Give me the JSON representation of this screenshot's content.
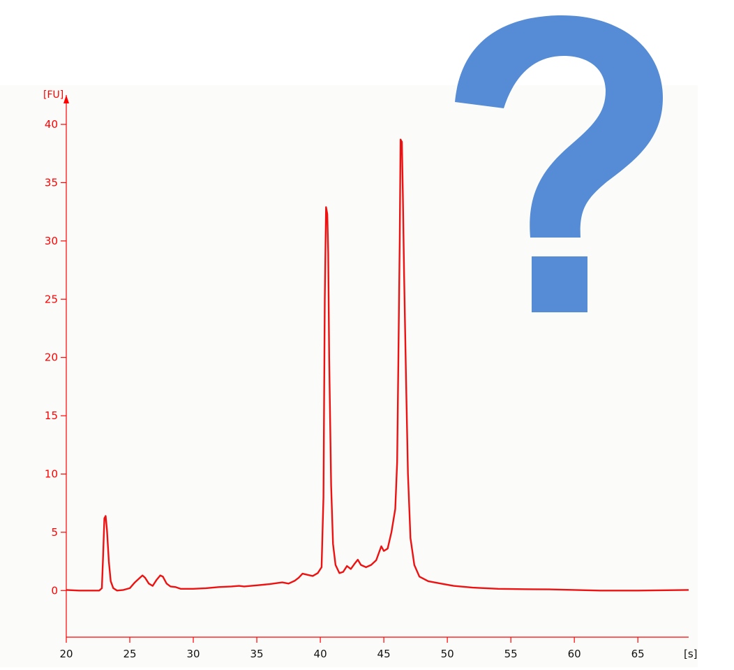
{
  "chart_data": {
    "type": "line",
    "title": "",
    "xlabel": "",
    "ylabel": "",
    "x_unit": "[s]",
    "y_unit": "[FU]",
    "xlim": [
      20,
      69
    ],
    "ylim": [
      -4,
      43
    ],
    "x_ticks": [
      20,
      25,
      30,
      35,
      40,
      45,
      50,
      55,
      60,
      65
    ],
    "y_ticks": [
      0,
      5,
      10,
      15,
      20,
      25,
      30,
      35,
      40
    ],
    "grid": false,
    "legend": "none",
    "series": [
      {
        "color": "#ee1111",
        "points": [
          [
            20.0,
            0.05
          ],
          [
            21.0,
            0.0
          ],
          [
            22.0,
            0.0
          ],
          [
            22.6,
            0.0
          ],
          [
            22.8,
            0.2
          ],
          [
            22.9,
            3.0
          ],
          [
            23.0,
            6.2
          ],
          [
            23.1,
            6.4
          ],
          [
            23.2,
            5.2
          ],
          [
            23.35,
            2.5
          ],
          [
            23.5,
            0.8
          ],
          [
            23.7,
            0.2
          ],
          [
            24.0,
            0.0
          ],
          [
            24.5,
            0.05
          ],
          [
            25.0,
            0.2
          ],
          [
            25.4,
            0.7
          ],
          [
            25.8,
            1.1
          ],
          [
            26.0,
            1.3
          ],
          [
            26.2,
            1.1
          ],
          [
            26.5,
            0.6
          ],
          [
            26.8,
            0.4
          ],
          [
            27.1,
            0.9
          ],
          [
            27.4,
            1.3
          ],
          [
            27.6,
            1.2
          ],
          [
            27.9,
            0.6
          ],
          [
            28.2,
            0.35
          ],
          [
            28.6,
            0.3
          ],
          [
            29.0,
            0.15
          ],
          [
            30.0,
            0.15
          ],
          [
            31.0,
            0.2
          ],
          [
            32.0,
            0.3
          ],
          [
            33.0,
            0.35
          ],
          [
            33.6,
            0.4
          ],
          [
            34.0,
            0.35
          ],
          [
            35.0,
            0.45
          ],
          [
            36.0,
            0.55
          ],
          [
            37.0,
            0.7
          ],
          [
            37.5,
            0.6
          ],
          [
            38.0,
            0.85
          ],
          [
            38.3,
            1.1
          ],
          [
            38.6,
            1.45
          ],
          [
            39.0,
            1.35
          ],
          [
            39.4,
            1.25
          ],
          [
            39.8,
            1.5
          ],
          [
            40.1,
            2.0
          ],
          [
            40.25,
            8.0
          ],
          [
            40.35,
            25.0
          ],
          [
            40.45,
            32.9
          ],
          [
            40.55,
            32.3
          ],
          [
            40.62,
            29.0
          ],
          [
            40.7,
            20.0
          ],
          [
            40.85,
            9.0
          ],
          [
            41.0,
            4.0
          ],
          [
            41.2,
            2.2
          ],
          [
            41.5,
            1.5
          ],
          [
            41.8,
            1.6
          ],
          [
            42.1,
            2.1
          ],
          [
            42.4,
            1.85
          ],
          [
            42.7,
            2.3
          ],
          [
            42.95,
            2.65
          ],
          [
            43.2,
            2.2
          ],
          [
            43.6,
            2.0
          ],
          [
            44.0,
            2.2
          ],
          [
            44.4,
            2.6
          ],
          [
            44.8,
            3.8
          ],
          [
            45.0,
            3.4
          ],
          [
            45.3,
            3.6
          ],
          [
            45.6,
            5.0
          ],
          [
            45.9,
            7.0
          ],
          [
            46.05,
            11.0
          ],
          [
            46.15,
            20.0
          ],
          [
            46.25,
            30.0
          ],
          [
            46.32,
            38.7
          ],
          [
            46.42,
            38.5
          ],
          [
            46.5,
            34.0
          ],
          [
            46.6,
            27.0
          ],
          [
            46.75,
            18.0
          ],
          [
            46.9,
            10.0
          ],
          [
            47.1,
            4.5
          ],
          [
            47.4,
            2.2
          ],
          [
            47.8,
            1.2
          ],
          [
            48.5,
            0.8
          ],
          [
            49.5,
            0.6
          ],
          [
            50.5,
            0.4
          ],
          [
            52.0,
            0.25
          ],
          [
            54.0,
            0.15
          ],
          [
            56.0,
            0.12
          ],
          [
            58.0,
            0.1
          ],
          [
            60.0,
            0.05
          ],
          [
            62.0,
            0.0
          ],
          [
            65.0,
            0.0
          ],
          [
            69.0,
            0.05
          ]
        ]
      }
    ]
  },
  "overlay": {
    "question_mark": "?",
    "question_mark_color": "#558cd5"
  },
  "colors": {
    "axis": "#ff0000",
    "tick_text": "#ff0000",
    "x_tick_text": "#111111",
    "plot_background": "#fbfcf9",
    "page_background": "#ffffff"
  }
}
